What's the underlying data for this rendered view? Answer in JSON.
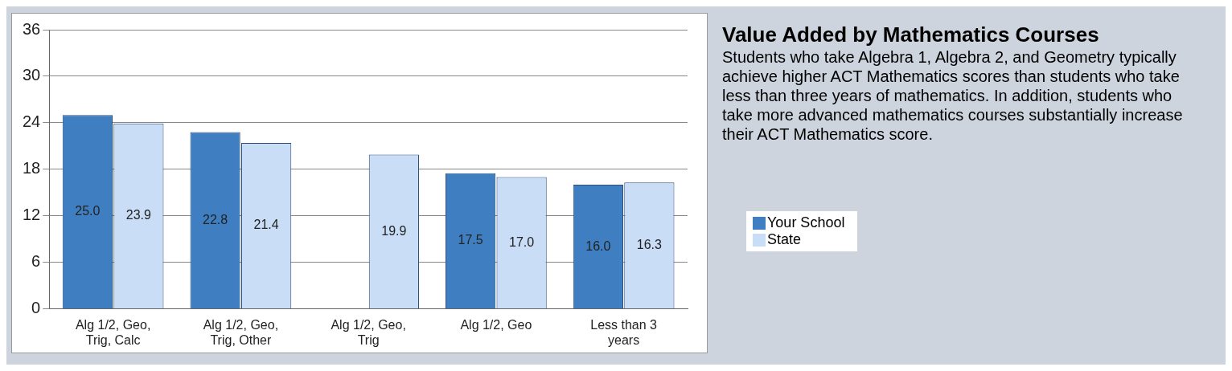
{
  "chart_data": {
    "type": "bar",
    "title": "Value Added by Mathematics Courses",
    "subtitle": "Students who take Algebra 1, Algebra 2, and Geometry typically achieve higher ACT Mathematics scores than students who take less than three years of mathematics. In addition, students who take more advanced mathematics courses substantially increase their ACT Mathematics score.",
    "categories": [
      "Alg 1/2, Geo, Trig, Calc",
      "Alg 1/2, Geo, Trig, Other",
      "Alg 1/2, Geo, Trig",
      "Alg 1/2, Geo",
      "Less than 3 years"
    ],
    "series": [
      {
        "name": "Your School",
        "color": "#3f7fc1",
        "values": [
          25.0,
          22.8,
          null,
          17.5,
          16.0
        ],
        "value_labels": [
          "25.0",
          "22.8",
          null,
          "17.5",
          "16.0"
        ]
      },
      {
        "name": "State",
        "color": "#c9ddf6",
        "values": [
          23.9,
          21.4,
          19.9,
          17.0,
          16.3
        ],
        "value_labels": [
          "23.9",
          "21.4",
          "19.9",
          "17.0",
          "16.3"
        ]
      }
    ],
    "ylim": [
      0,
      36
    ],
    "yticks": [
      0,
      6,
      12,
      18,
      24,
      30,
      36
    ],
    "grid": "y",
    "legend": "right"
  }
}
